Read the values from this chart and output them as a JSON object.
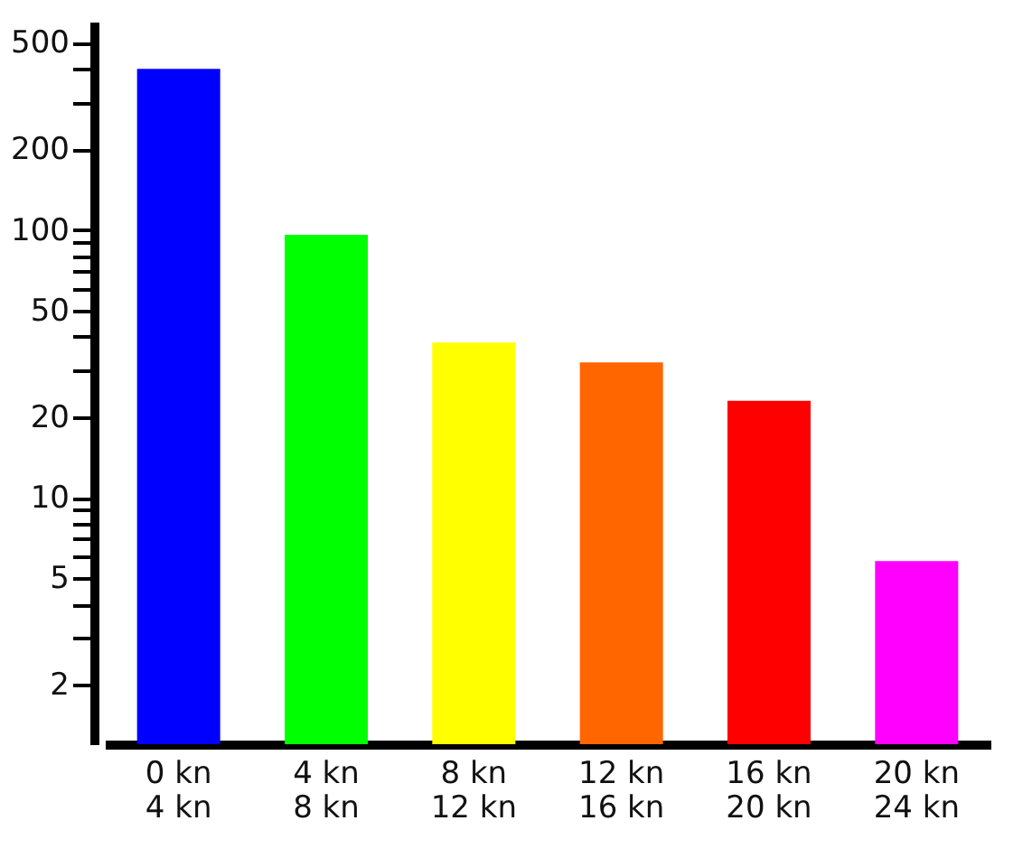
{
  "chart_data": {
    "type": "bar",
    "log": true,
    "categories": [
      "0 kn\n4 kn",
      "4 kn\n8 kn",
      "8 kn\n12 kn",
      "12 kn\n16 kn",
      "16 kn\n20 kn",
      "20 kn\n24 kn"
    ],
    "values": [
      400,
      96,
      38,
      32,
      23,
      5.8
    ],
    "colors": [
      "#0000ff",
      "#00ff00",
      "#ffff00",
      "#ff6600",
      "#ff0000",
      "#ff00ff"
    ],
    "ylim": [
      1.2,
      600
    ],
    "yticks": [
      2,
      {
        "value": 3,
        "label": null
      },
      {
        "value": 4,
        "label": null
      },
      5,
      {
        "value": 6,
        "label": null
      },
      {
        "value": 7,
        "label": null
      },
      {
        "value": 8,
        "label": null
      },
      {
        "value": 9,
        "label": null
      },
      10,
      20,
      {
        "value": 30,
        "label": null
      },
      {
        "value": 40,
        "label": null
      },
      50,
      {
        "value": 60,
        "label": null
      },
      {
        "value": 70,
        "label": null
      },
      {
        "value": 80,
        "label": null
      },
      {
        "value": 90,
        "label": null
      },
      100,
      200,
      {
        "value": 300,
        "label": null
      },
      {
        "value": 400,
        "label": null
      },
      500
    ],
    "grid": false
  }
}
